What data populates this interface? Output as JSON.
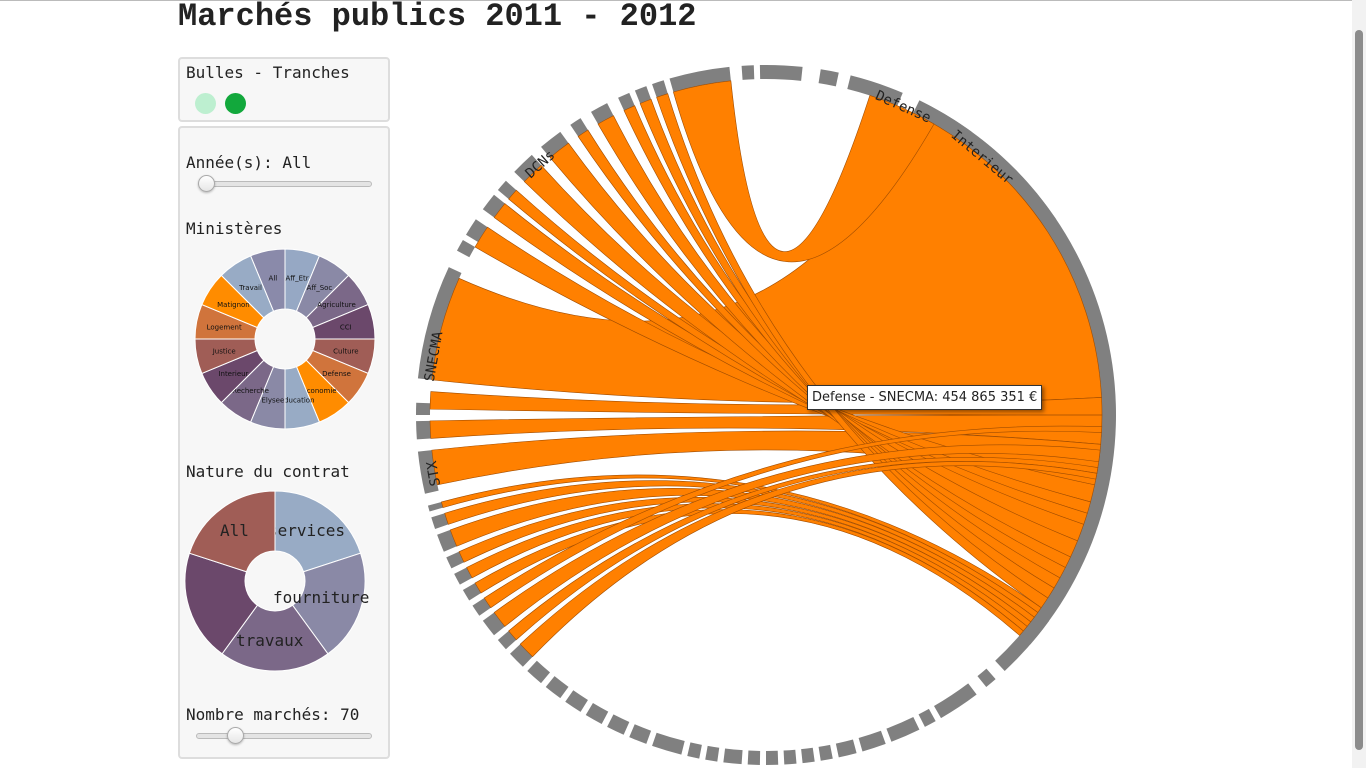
{
  "page": {
    "title": "Marchés publics 2011 - 2012"
  },
  "bubbles": {
    "label": "Bulles - Tranches",
    "dots": [
      {
        "name": "light",
        "color": "#bdefd0"
      },
      {
        "name": "dark",
        "color": "#12a83c"
      }
    ]
  },
  "filters": {
    "annee_label": "Année(s): All",
    "annee_slider_value": 0,
    "ministeres_label": "Ministères",
    "ministeres": [
      {
        "label": "All",
        "color": "#8a8aaa"
      },
      {
        "label": "Aff_Etr",
        "color": "#96a8c4"
      },
      {
        "label": "Aff_Soc",
        "color": "#8a89a6"
      },
      {
        "label": "Agriculture",
        "color": "#7b6888"
      },
      {
        "label": "CCI",
        "color": "#6b486b"
      },
      {
        "label": "Culture",
        "color": "#a05d56"
      },
      {
        "label": "Defense",
        "color": "#d0743c"
      },
      {
        "label": "Economie",
        "color": "#ff8c00"
      },
      {
        "label": "Education",
        "color": "#98abc5"
      },
      {
        "label": "Elysee",
        "color": "#8a89a6"
      },
      {
        "label": "Recherche",
        "color": "#7b6888"
      },
      {
        "label": "Interieur",
        "color": "#6b486b"
      },
      {
        "label": "Justice",
        "color": "#a05d56"
      },
      {
        "label": "Logement",
        "color": "#d0743c"
      },
      {
        "label": "Matignon",
        "color": "#ff8c00"
      },
      {
        "label": "Travail",
        "color": "#98abc5"
      }
    ],
    "nature_label": "Nature du contrat",
    "nature": [
      {
        "label": "services",
        "color": "#98abc5"
      },
      {
        "label": "fourniture",
        "color": "#8a89a6"
      },
      {
        "label": "travaux",
        "color": "#7b6888"
      },
      {
        "label": "",
        "color": "#6b486b"
      },
      {
        "label": "All",
        "color": "#a05d56"
      }
    ],
    "nombre_label": "Nombre marchés: 70",
    "nombre_slider_value": 70
  },
  "chord": {
    "ribbon_color": "#ff8000",
    "group_color": "#808080",
    "groups": [
      {
        "label": "Defense"
      },
      {
        "label": "Interieur"
      },
      {
        "label": "DCNs"
      },
      {
        "label": "SNECMA"
      },
      {
        "label": "STX"
      }
    ]
  },
  "tooltip": {
    "text": "Defense - SNECMA: 454 865 351 €"
  }
}
